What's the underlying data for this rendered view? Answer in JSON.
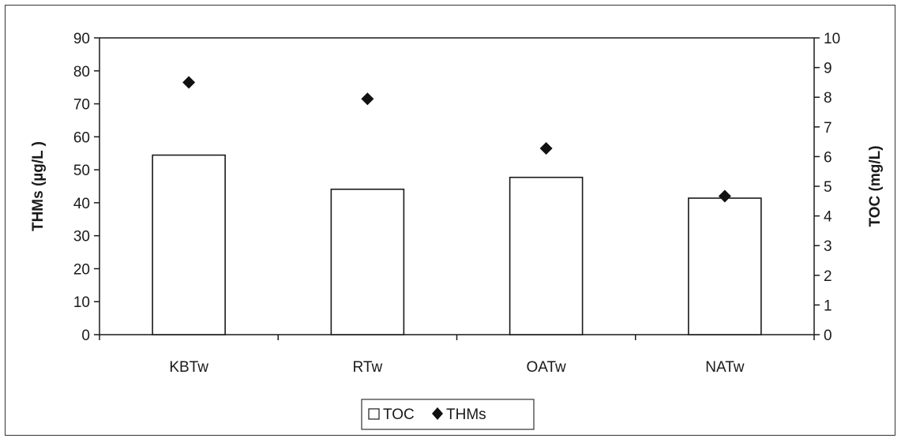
{
  "chart_data": {
    "type": "bar",
    "categories": [
      "KBTw",
      "RTw",
      "OATw",
      "NATw"
    ],
    "series": [
      {
        "name": "TOC",
        "kind": "bar",
        "axis": "right",
        "values": [
          6.05,
          4.9,
          5.3,
          4.6
        ]
      },
      {
        "name": "THMs",
        "kind": "scatter",
        "axis": "left",
        "marker": "diamond",
        "values": [
          76.5,
          71.5,
          56.5,
          42.0
        ]
      }
    ],
    "ylabel_left": "THMs (µg/L )",
    "ylabel_right": "TOC (mg/L)",
    "ylim_left": [
      0,
      90
    ],
    "ylim_right": [
      0,
      10
    ],
    "yticks_left": [
      0,
      10,
      20,
      30,
      40,
      50,
      60,
      70,
      80,
      90
    ],
    "yticks_right": [
      0,
      1,
      2,
      3,
      4,
      5,
      6,
      7,
      8,
      9,
      10
    ],
    "grid": false,
    "legend": {
      "placement": "bottom-center",
      "entries": [
        "TOC",
        "THMs"
      ]
    },
    "colors": {
      "bar_fill": "#ffffff",
      "bar_stroke": "#1a1a1a",
      "marker": "#111111"
    }
  }
}
